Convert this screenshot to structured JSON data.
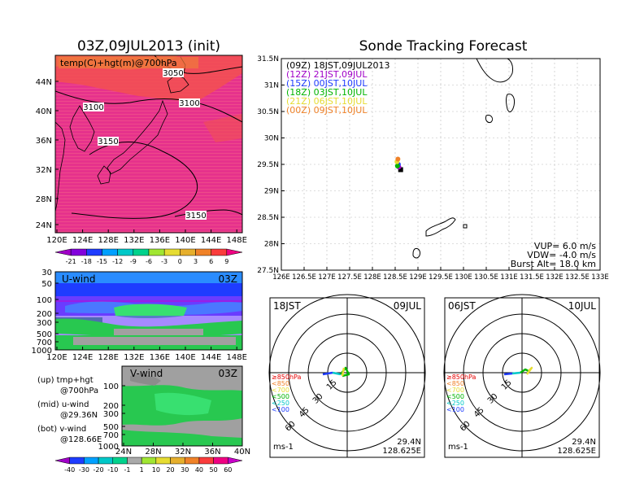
{
  "titles": {
    "left_title": "03Z,09JUL2013 (init)",
    "right_title": "Sonde Tracking Forecast"
  },
  "map_small": {
    "panel_label": "temp(C)+hgt(m)@700hPa",
    "lat_labels": [
      "44N",
      "40N",
      "36N",
      "32N",
      "28N",
      "24N"
    ],
    "lon_labels": [
      "120E",
      "124E",
      "128E",
      "132E",
      "136E",
      "140E",
      "144E",
      "148E"
    ],
    "contour_labels": [
      "3050",
      "3100",
      "3100",
      "3150",
      "3150"
    ]
  },
  "temp_colorbar": {
    "labels": [
      "-21",
      "-18",
      "-15",
      "-12",
      "-9",
      "-6",
      "-3",
      "0",
      "3",
      "6",
      "9"
    ],
    "colors": [
      "#a000c8",
      "#8200dc",
      "#1e3cff",
      "#00a0ff",
      "#00c8c8",
      "#00d28c",
      "#a0e632",
      "#e6dc32",
      "#e6af2d",
      "#f08228",
      "#fa3c3c",
      "#f00082"
    ]
  },
  "u_wind": {
    "label": "U-wind",
    "time": "03Z",
    "y_labels": [
      "30",
      "50",
      "100",
      "200",
      "300",
      "500",
      "700",
      "1000"
    ],
    "x_labels": [
      "120E",
      "124E",
      "128E",
      "132E",
      "136E",
      "140E",
      "144E",
      "148E"
    ]
  },
  "v_wind": {
    "label": "V-wind",
    "time": "03Z",
    "y_labels": [
      "100",
      "200",
      "300",
      "500",
      "700",
      "1000"
    ],
    "x_labels": [
      "24N",
      "28N",
      "32N",
      "36N",
      "40N"
    ]
  },
  "legend_notes": {
    "up1": "(up) tmp+hgt",
    "up2": "@700hPa",
    "mid1": "(mid) u-wind",
    "mid2": "@29.36N",
    "bot1": "(bot) v-wind",
    "bot2": "@128.66E"
  },
  "wind_colorbar": {
    "labels": [
      "-40",
      "-30",
      "-20",
      "-10",
      "-1",
      "1",
      "10",
      "20",
      "30",
      "40",
      "50",
      "60"
    ],
    "colors": [
      "#a000c8",
      "#1e3cff",
      "#00a0ff",
      "#00c8c8",
      "#00d28c",
      "#aaaaaa",
      "#a0e632",
      "#e6dc32",
      "#e6af2d",
      "#f08228",
      "#fa3c3c",
      "#f00082",
      "#c800c8"
    ]
  },
  "track_map": {
    "lat_labels": [
      "31.5N",
      "31N",
      "30.5N",
      "30N",
      "29.5N",
      "29N",
      "28.5N",
      "28N",
      "27.5N"
    ],
    "lon_labels": [
      "126E",
      "126.5E",
      "127E",
      "127.5E",
      "128E",
      "128.5E",
      "129E",
      "129.5E",
      "130E",
      "130.5E",
      "131E",
      "131.5E",
      "132E",
      "132.5E",
      "133E"
    ],
    "legend": [
      {
        "text": "(09Z)  18JST,09JUL2013",
        "color": "#000000"
      },
      {
        "text": "(12Z)  21JST,09JUL",
        "color": "#a000c8"
      },
      {
        "text": "(15Z)  00JST,10JUL",
        "color": "#1e3cff"
      },
      {
        "text": "(18Z)  03JST,10JUL",
        "color": "#00b400"
      },
      {
        "text": "(21Z)  06JST,10JUL",
        "color": "#e6dc32"
      },
      {
        "text": "(00Z)  09JST,10JUL",
        "color": "#f08228"
      }
    ],
    "vup": "VUP=  6.0  m/s",
    "vdw": "VDW=  -4.0  m/s",
    "burst": "Burst Alt=  18.0  km"
  },
  "hodograph_left": {
    "time_label": "18JST",
    "date_label": "09JUL",
    "ring_labels": [
      "15",
      "30",
      "45",
      "60"
    ],
    "levels": [
      {
        "text": "≥850hPa",
        "color": "#e60000"
      },
      {
        "text": "<850",
        "color": "#f08228"
      },
      {
        "text": "<700",
        "color": "#e6dc32"
      },
      {
        "text": "<500",
        "color": "#00b400"
      },
      {
        "text": "<250",
        "color": "#00c8c8"
      },
      {
        "text": "<100",
        "color": "#1e3cff"
      }
    ],
    "unit": "ms-1",
    "lat": "29.4N",
    "lon": "128.625E"
  },
  "hodograph_right": {
    "time_label": "06JST",
    "date_label": "10JUL",
    "ring_labels": [
      "15",
      "30",
      "45",
      "60"
    ],
    "levels": [
      {
        "text": "≥850hPa",
        "color": "#e60000"
      },
      {
        "text": "<850",
        "color": "#f08228"
      },
      {
        "text": "<700",
        "color": "#e6dc32"
      },
      {
        "text": "<500",
        "color": "#00b400"
      },
      {
        "text": "<250",
        "color": "#00c8c8"
      },
      {
        "text": "<100",
        "color": "#1e3cff"
      }
    ],
    "unit": "ms-1",
    "lat": "29.4N",
    "lon": "128.625E"
  },
  "chart_data": [
    {
      "type": "heatmap",
      "title": "03Z,09JUL2013 (init)",
      "subtitle": "temp(C)+hgt(m)@700hPa",
      "xlim": [
        120,
        149
      ],
      "ylim": [
        22,
        47
      ],
      "contours": [
        3050,
        3100,
        3150
      ]
    },
    {
      "type": "heatmap",
      "title": "U-wind",
      "ylabels": [
        30,
        50,
        100,
        200,
        300,
        500,
        700,
        1000
      ]
    },
    {
      "type": "heatmap",
      "title": "V-wind",
      "ylabels": [
        100,
        200,
        300,
        500,
        700,
        1000
      ]
    },
    {
      "type": "scatter",
      "title": "Sonde Tracking Forecast",
      "xlim": [
        126,
        133
      ],
      "ylim": [
        27.5,
        31.5
      ],
      "series": [
        {
          "name": "(09Z)  18JST,09JUL2013",
          "x": [
            128.62
          ],
          "y": [
            29.4
          ]
        },
        {
          "name": "(12Z)  21JST,09JUL",
          "x": [
            128.58
          ],
          "y": [
            29.45
          ]
        },
        {
          "name": "(15Z)  00JST,10JUL",
          "x": [
            128.57
          ],
          "y": [
            29.5
          ]
        },
        {
          "name": "(18Z)  03JST,10JUL",
          "x": [
            128.55
          ],
          "y": [
            29.47
          ]
        },
        {
          "name": "(21Z)  06JST,10JUL",
          "x": [
            128.54
          ],
          "y": [
            29.55
          ]
        },
        {
          "name": "(00Z)  09JST,10JUL",
          "x": [
            128.56
          ],
          "y": [
            29.6
          ]
        }
      ]
    }
  ]
}
